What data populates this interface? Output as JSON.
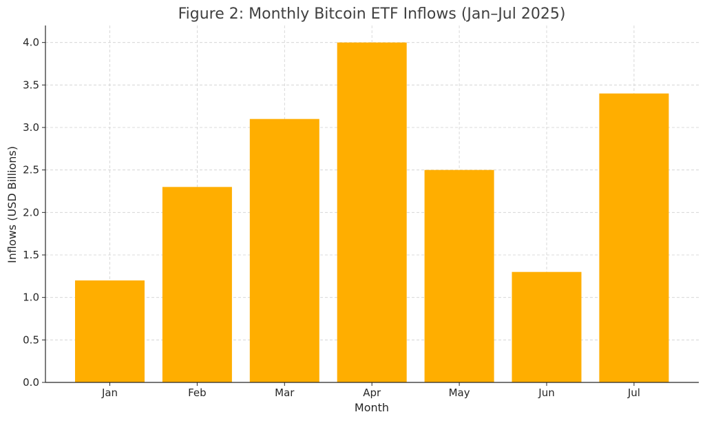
{
  "chart_data": {
    "type": "bar",
    "title": "Figure 2: Monthly Bitcoin ETF Inflows (Jan–Jul 2025)",
    "xlabel": "Month",
    "ylabel": "Inflows (USD Billions)",
    "categories": [
      "Jan",
      "Feb",
      "Mar",
      "Apr",
      "May",
      "Jun",
      "Jul"
    ],
    "values": [
      1.2,
      2.3,
      3.1,
      4.0,
      2.5,
      1.3,
      3.4
    ],
    "ylim": [
      0,
      4.2
    ],
    "yticks": [
      "0.0",
      "0.5",
      "1.0",
      "1.5",
      "2.0",
      "2.5",
      "3.0",
      "3.5",
      "4.0"
    ],
    "grid": true,
    "bar_color": "#FFAE00"
  }
}
